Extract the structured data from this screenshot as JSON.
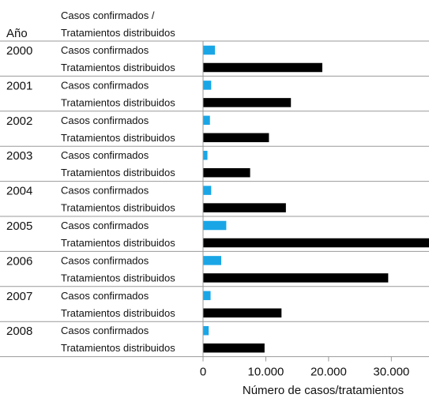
{
  "chart_data": {
    "type": "bar",
    "orientation": "horizontal",
    "header": {
      "year_label": "Año",
      "category_label_line1": "Casos confirmados /",
      "category_label_line2": "Tratamientos distribuidos"
    },
    "categories": [
      "2000",
      "2001",
      "2002",
      "2003",
      "2004",
      "2005",
      "2006",
      "2007",
      "2008"
    ],
    "series": [
      {
        "name": "Casos confirmados",
        "color": "#1aa6e6",
        "values": [
          1900,
          1300,
          1100,
          700,
          1300,
          3700,
          2900,
          1200,
          900
        ]
      },
      {
        "name": "Tratamientos distribuidos",
        "color": "#000000",
        "values": [
          19000,
          14000,
          10500,
          7500,
          13200,
          36000,
          29500,
          12500,
          9800
        ]
      }
    ],
    "xlabel": "Número de casos/tratamientos",
    "xticks": [
      0,
      10000,
      20000,
      30000
    ],
    "xtick_labels": [
      "0",
      "10.000",
      "20.000",
      "30.000"
    ],
    "xlim": [
      0,
      36000
    ],
    "grid": false
  }
}
